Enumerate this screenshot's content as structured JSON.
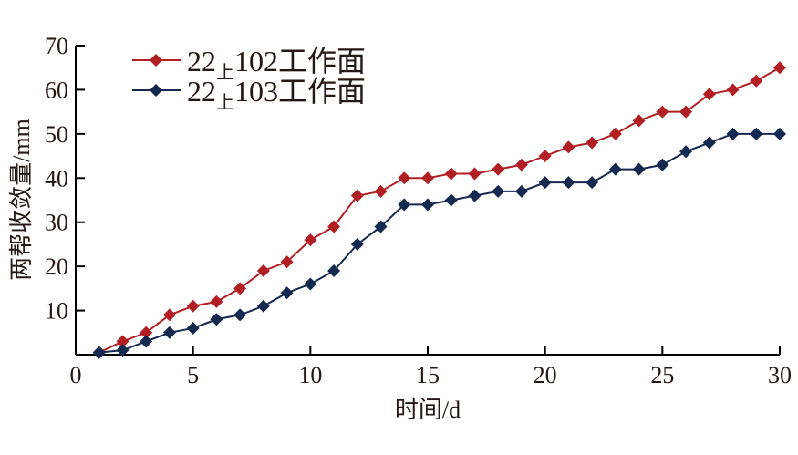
{
  "chart_data": {
    "type": "line",
    "title": "",
    "xlabel": "时间/d",
    "ylabel": "两帮收敛量/mm",
    "xlim": [
      0,
      30
    ],
    "ylim": [
      0,
      70
    ],
    "xticks": [
      0,
      5,
      10,
      15,
      20,
      25,
      30
    ],
    "yticks": [
      10,
      20,
      30,
      40,
      50,
      60,
      70
    ],
    "grid": false,
    "legend_position": "top-left",
    "x": [
      1,
      2,
      3,
      4,
      5,
      6,
      7,
      8,
      9,
      10,
      11,
      12,
      13,
      14,
      15,
      16,
      17,
      18,
      19,
      20,
      21,
      22,
      23,
      24,
      25,
      26,
      27,
      28,
      29,
      30
    ],
    "series": [
      {
        "name": "22上102工作面",
        "name_parts": [
          "22",
          "上",
          "102工作面"
        ],
        "color": "#b11f24",
        "marker": "diamond",
        "values": [
          0.5,
          3,
          5,
          9,
          11,
          12,
          15,
          19,
          21,
          26,
          29,
          36,
          37,
          40,
          40,
          41,
          41,
          42,
          43,
          45,
          47,
          48,
          50,
          53,
          55,
          55,
          59,
          60,
          62,
          65
        ]
      },
      {
        "name": "22上103工作面",
        "name_parts": [
          "22",
          "上",
          "103工作面"
        ],
        "color": "#14294f",
        "marker": "diamond",
        "values": [
          0.5,
          1,
          3,
          5,
          6,
          8,
          9,
          11,
          14,
          16,
          19,
          25,
          29,
          34,
          34,
          35,
          36,
          37,
          37,
          39,
          39,
          39,
          42,
          42,
          43,
          46,
          48,
          50,
          50,
          50
        ]
      }
    ]
  }
}
